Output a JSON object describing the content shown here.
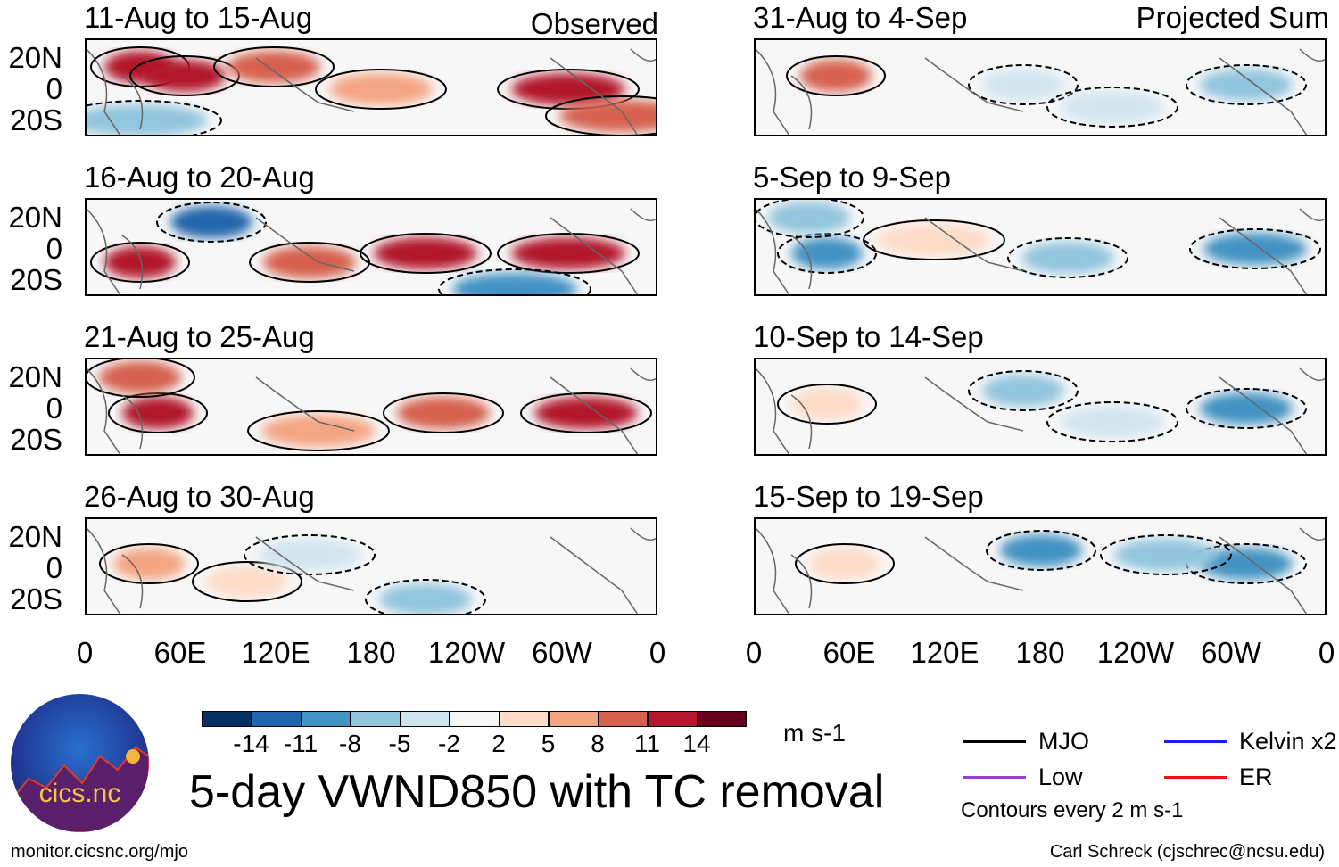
{
  "panels_left": {
    "tag": "Observed",
    "titles": [
      "11-Aug to 15-Aug",
      "16-Aug to 20-Aug",
      "21-Aug to 25-Aug",
      "26-Aug to 30-Aug"
    ]
  },
  "panels_right": {
    "tag": "Projected Sum",
    "titles": [
      "31-Aug to 4-Sep",
      "5-Sep to 9-Sep",
      "10-Sep to 14-Sep",
      "15-Sep to 19-Sep"
    ]
  },
  "lat_labels": [
    "20N",
    "0",
    "20S"
  ],
  "lon_labels": [
    "0",
    "60E",
    "120E",
    "180",
    "120W",
    "60W",
    "0"
  ],
  "colorbar": {
    "labels": [
      "-14",
      "-11",
      "-8",
      "-5",
      "-2",
      "2",
      "5",
      "8",
      "11",
      "14"
    ],
    "colors": [
      "#053061",
      "#2166ac",
      "#4393c3",
      "#92c5de",
      "#d1e5f0",
      "#f7f7f7",
      "#fddbc7",
      "#f4a582",
      "#d6604d",
      "#b2182b",
      "#67001f"
    ],
    "units": "m s-1"
  },
  "title": "5-day VWND850 with TC removal",
  "legend": {
    "items": [
      {
        "label": "MJO",
        "color": "#000000"
      },
      {
        "label": "Kelvin x2",
        "color": "#1a1aff"
      },
      {
        "label": "Low",
        "color": "#9b3fdb"
      },
      {
        "label": "ER",
        "color": "#ee1111"
      }
    ],
    "note": "Contours every 2 m s-1"
  },
  "logo": {
    "text": "cics.nc",
    "ring": "Cooperative Institute for Climate and Satellites"
  },
  "footer": {
    "url": "monitor.cicsnc.org/mjo",
    "credit": "Carl Schreck (cjschrec@ncsu.edu)"
  }
}
